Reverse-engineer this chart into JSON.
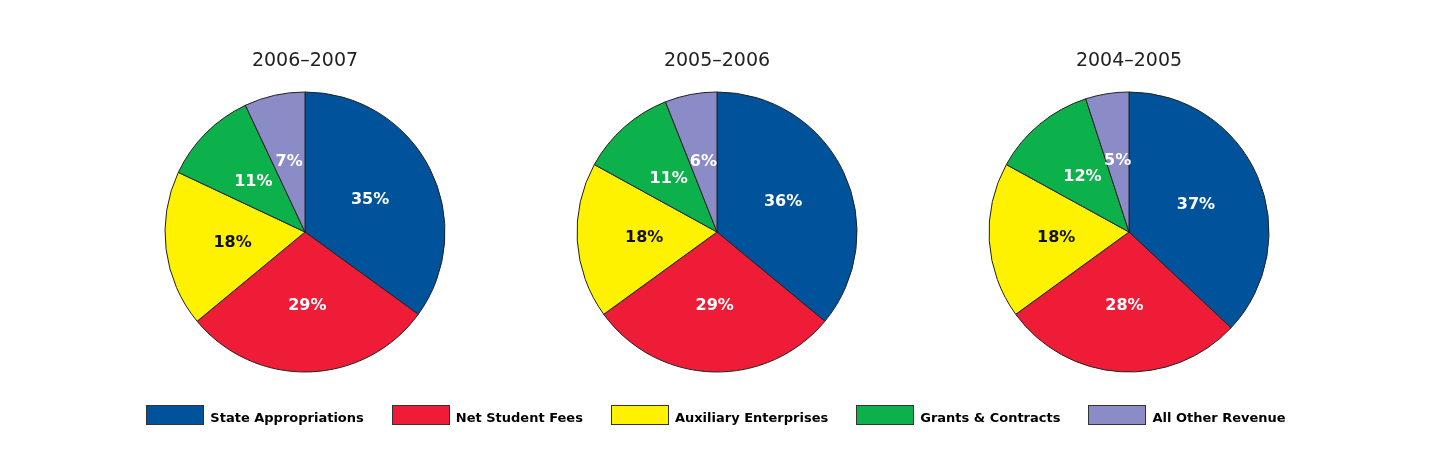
{
  "chart_data": [
    {
      "type": "pie",
      "title": "2006–2007",
      "categories": [
        "State Appropriations",
        "Net Student Fees",
        "Auxiliary Enterprises",
        "Grants & Contracts",
        "All Other Revenue"
      ],
      "values": [
        35,
        29,
        18,
        11,
        7
      ],
      "value_labels": [
        "35%",
        "29%",
        "18%",
        "11%",
        "7%"
      ],
      "colors": [
        "#00539b",
        "#ee1c36",
        "#fff200",
        "#0db14b",
        "#8b8bc8"
      ],
      "legend": "bottom"
    },
    {
      "type": "pie",
      "title": "2005–2006",
      "values": [
        36,
        29,
        18,
        11,
        6
      ],
      "value_labels": [
        "36%",
        "29%",
        "18%",
        "11%",
        "6%"
      ],
      "colors": [
        "#00539b",
        "#ee1c36",
        "#fff200",
        "#0db14b",
        "#8b8bc8"
      ]
    },
    {
      "type": "pie",
      "title": "2004–2005",
      "values": [
        37,
        28,
        18,
        12,
        5
      ],
      "value_labels": [
        "37%",
        "28%",
        "18%",
        "12%",
        "5%"
      ],
      "colors": [
        "#00539b",
        "#ee1c36",
        "#fff200",
        "#0db14b",
        "#8b8bc8"
      ]
    }
  ]
}
